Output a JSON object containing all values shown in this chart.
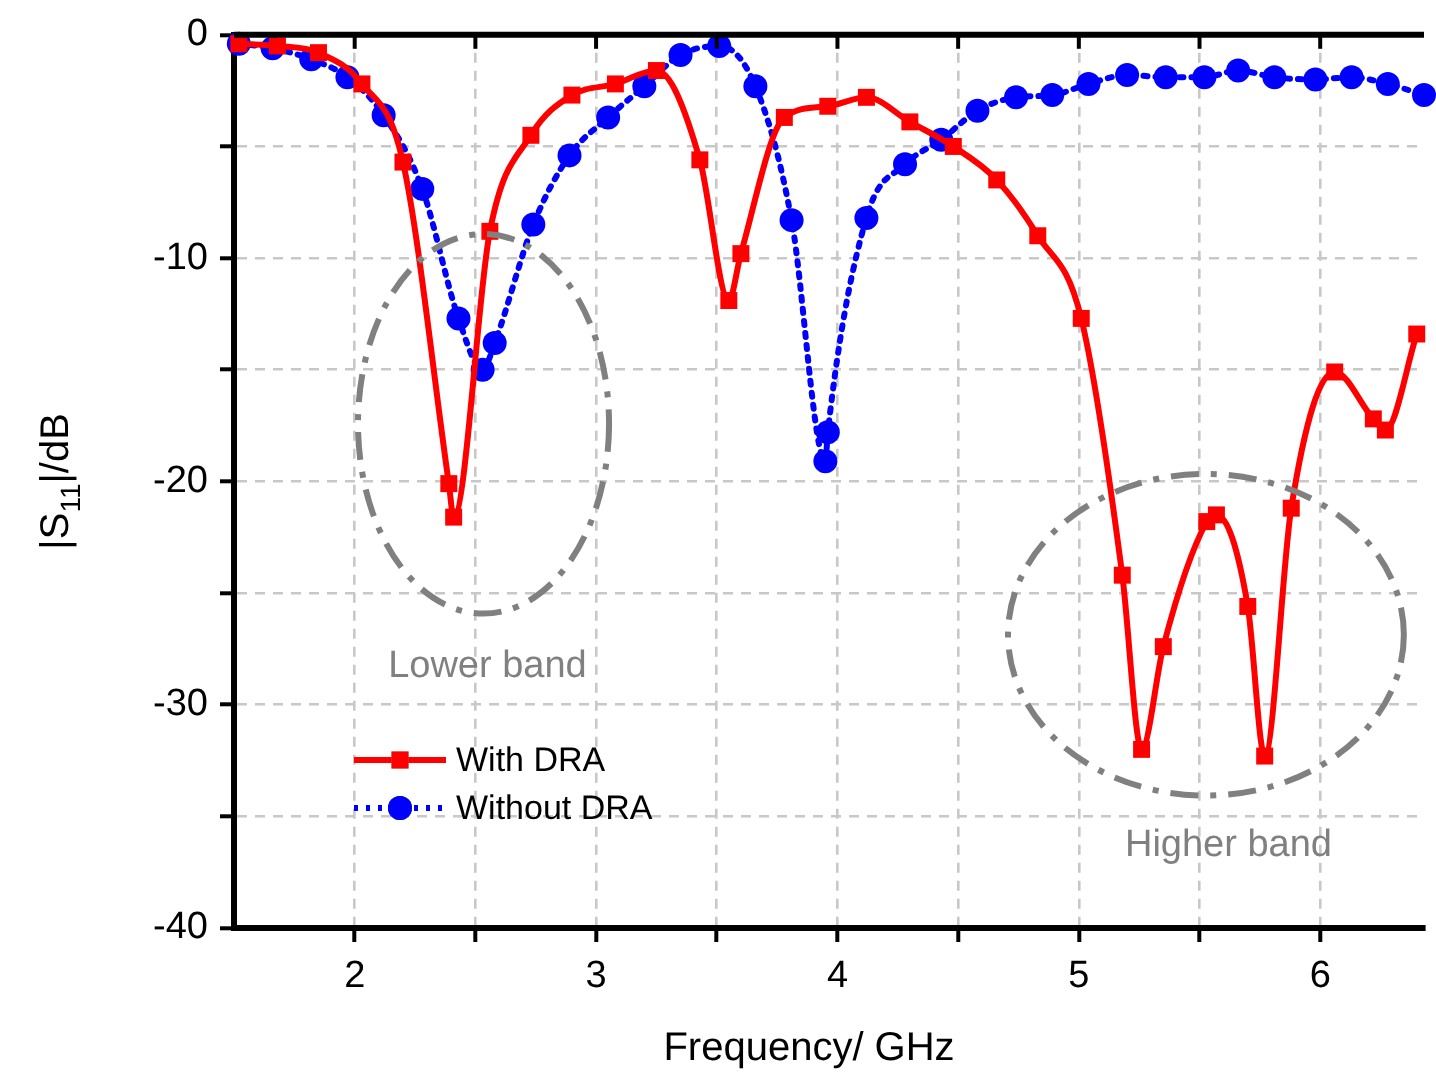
{
  "chart_data": {
    "type": "line",
    "xlabel": "Frequency/ GHz",
    "ylabel": "|S$_{11}$|/dB",
    "xlim": [
      1.5,
      6.43
    ],
    "ylim": [
      -40,
      0
    ],
    "xticks": [
      2,
      {
        "value": 2.5,
        "label": null
      },
      3,
      {
        "value": 3.5,
        "label": null
      },
      4,
      {
        "value": 4.5,
        "label": null
      },
      5,
      {
        "value": 5.5,
        "label": null
      },
      6
    ],
    "yticks": [
      -40,
      {
        "value": -35,
        "label": null
      },
      -30,
      {
        "value": -25,
        "label": null
      },
      -20,
      {
        "value": -15,
        "label": null
      },
      -10,
      {
        "value": -5,
        "label": null
      },
      0
    ],
    "grid": true,
    "legend": "bottom left",
    "series": [
      {
        "name": "With DRA",
        "color": "#ff0000",
        "marker": "square",
        "line_style": "solid",
        "x": [
          1.52,
          1.68,
          1.85,
          2.03,
          2.2,
          2.39,
          2.41,
          2.56,
          2.73,
          2.9,
          3.08,
          3.25,
          3.43,
          3.55,
          3.6,
          3.78,
          3.96,
          4.12,
          4.3,
          4.48,
          4.66,
          4.83,
          5.01,
          5.18,
          5.26,
          5.35,
          5.53,
          5.57,
          5.7,
          5.77,
          5.88,
          6.06,
          6.22,
          6.27,
          6.4
        ],
        "values": [
          -0.4,
          -0.5,
          -0.8,
          -2.2,
          -5.7,
          -20.1,
          -21.6,
          -8.8,
          -4.5,
          -2.7,
          -2.2,
          -1.6,
          -5.6,
          -11.9,
          -9.8,
          -3.7,
          -3.2,
          -2.8,
          -3.9,
          -5.0,
          -6.5,
          -9.0,
          -12.7,
          -24.2,
          -32.0,
          -27.4,
          -21.8,
          -21.5,
          -25.6,
          -32.3,
          -21.2,
          -15.1,
          -17.2,
          -17.7,
          -13.4
        ]
      },
      {
        "name": "Without DRA",
        "color": "#0000ff",
        "marker": "circle",
        "line_style": "dotted",
        "x": [
          1.52,
          1.66,
          1.82,
          1.97,
          2.12,
          2.28,
          2.43,
          2.53,
          2.58,
          2.74,
          2.89,
          3.05,
          3.2,
          3.35,
          3.51,
          3.66,
          3.81,
          3.95,
          3.96,
          4.12,
          4.28,
          4.43,
          4.58,
          4.74,
          4.89,
          5.04,
          5.2,
          5.36,
          5.52,
          5.66,
          5.81,
          5.98,
          6.13,
          6.28,
          6.43
        ],
        "values": [
          -0.4,
          -0.6,
          -1.1,
          -1.9,
          -3.6,
          -6.9,
          -12.7,
          -15.0,
          -13.8,
          -8.5,
          -5.4,
          -3.7,
          -2.3,
          -0.9,
          -0.5,
          -2.3,
          -8.3,
          -19.1,
          -17.8,
          -8.2,
          -5.8,
          -4.7,
          -3.4,
          -2.8,
          -2.7,
          -2.2,
          -1.8,
          -1.9,
          -1.9,
          -1.6,
          -1.9,
          -2.0,
          -1.9,
          -2.2,
          -2.7
        ]
      }
    ],
    "annotations": [
      "Lower band",
      "Higher band"
    ]
  }
}
